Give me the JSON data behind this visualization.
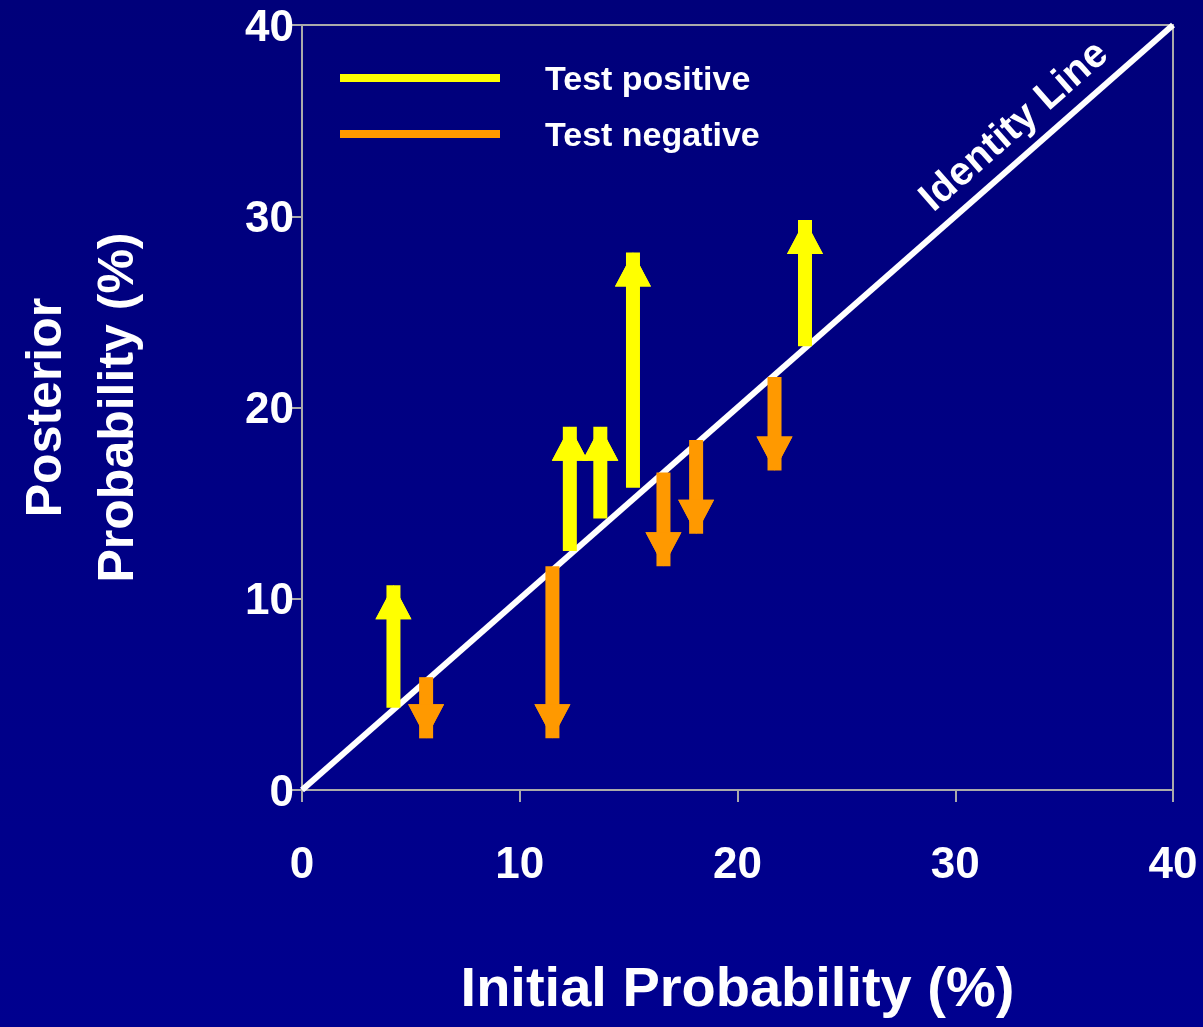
{
  "chart_data": {
    "type": "bar",
    "xlabel": "Initial Probability (%)",
    "ylabel": "Posterior Probability (%)",
    "xlim": [
      0,
      40
    ],
    "xticks": [
      0,
      10,
      20,
      30,
      40
    ],
    "ylim": [
      0,
      40
    ],
    "yticks": [
      0,
      10,
      20,
      30,
      40
    ],
    "legend": "top left",
    "series": [
      {
        "name": "Test positive",
        "color": "#ffff00",
        "x": [
          4.2,
          12.3,
          13.7,
          15.2,
          23.1
        ],
        "base": [
          4.3,
          12.5,
          14.2,
          15.8,
          23.2
        ],
        "values": [
          6.4,
          6.5,
          4.8,
          12.3,
          6.6
        ]
      },
      {
        "name": "Test negative",
        "color": "#ff9900",
        "x": [
          5.7,
          11.5,
          16.6,
          18.1,
          21.7
        ],
        "base": [
          5.9,
          11.7,
          16.6,
          18.3,
          21.6
        ],
        "values": [
          -3.2,
          -9.0,
          -4.9,
          -4.9,
          -4.9
        ]
      },
      {
        "name": "Identity Line",
        "type": "line",
        "color": "#ffffff",
        "x": [
          0,
          40
        ],
        "values": [
          0,
          40
        ]
      }
    ]
  }
}
